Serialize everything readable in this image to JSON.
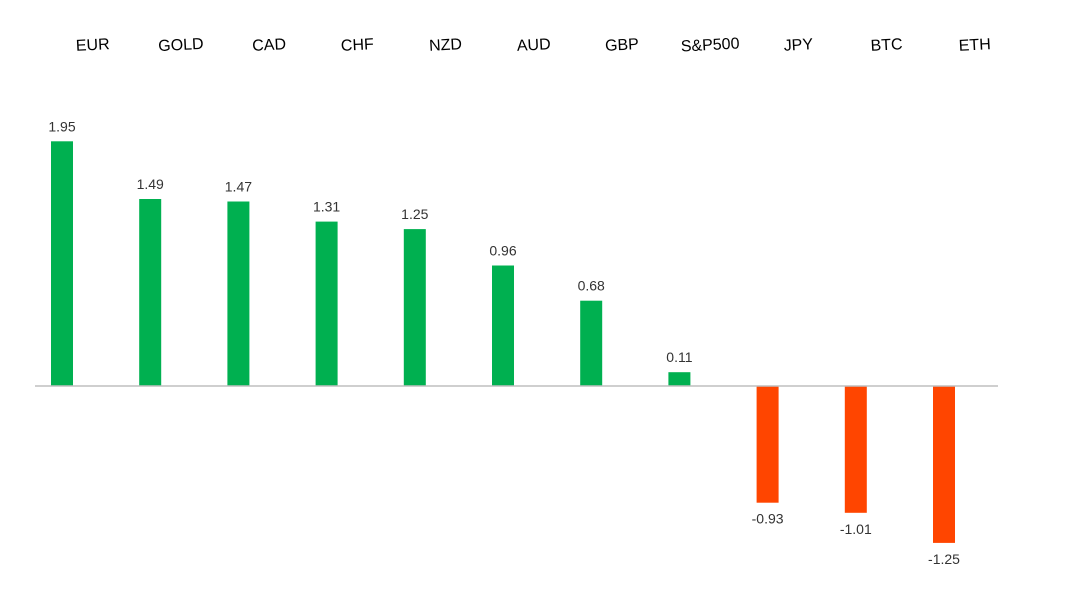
{
  "chart_data": {
    "type": "bar",
    "categories": [
      "EUR",
      "GOLD",
      "CAD",
      "CHF",
      "NZD",
      "AUD",
      "GBP",
      "S&P500",
      "JPY",
      "BTC",
      "ETH"
    ],
    "values": [
      1.95,
      1.49,
      1.47,
      1.31,
      1.25,
      0.96,
      0.68,
      0.11,
      -0.93,
      -1.01,
      -1.25
    ],
    "value_labels": [
      "1.95",
      "1.49",
      "1.47",
      "1.31",
      "1.25",
      "0.96",
      "0.68",
      "0.11",
      "-0.93",
      "-1.01",
      "-1.25"
    ],
    "title": "",
    "xlabel": "",
    "ylabel": "",
    "ylim": [
      -1.25,
      1.95
    ],
    "grid": false,
    "legend": "none",
    "category_labels_position": "top",
    "colors": {
      "positive": "#00b050",
      "negative": "#ff4500",
      "axis": "#bfbfbf"
    }
  }
}
